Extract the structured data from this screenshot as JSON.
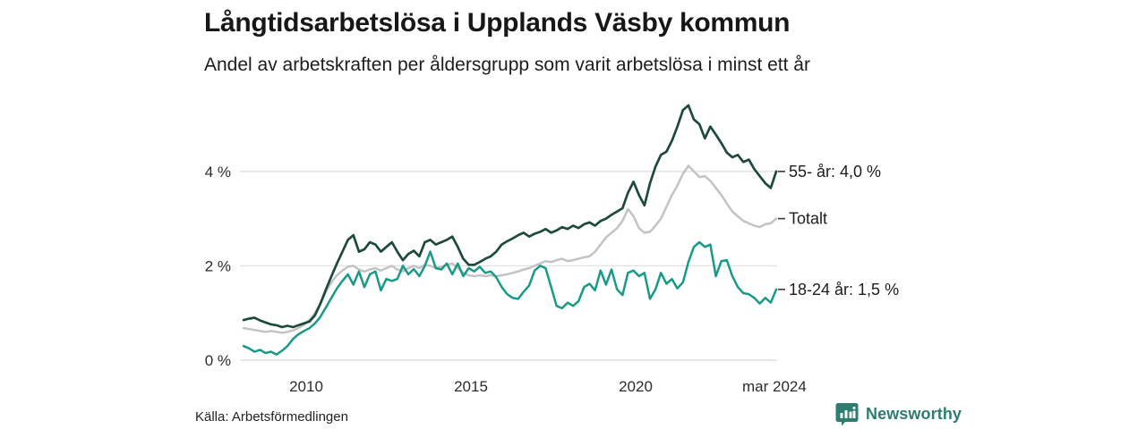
{
  "title": "Långtidsarbetslösa i Upplands Väsby kommun",
  "subtitle": "Andel av arbetskraften per åldersgrupp som varit arbetslösa i minst ett år",
  "source": "Källa: Arbetsförmedlingen",
  "brand": {
    "name": "Newsworthy",
    "color": "#2c7d6f",
    "icon": "bar-chart-speech-bubble-icon"
  },
  "colors": {
    "series_55": "#1e4a3e",
    "series_totalt": "#c3c3c5",
    "series_18_24": "#199a86",
    "gridline": "#e1e1e1",
    "zero_line": "#d6d6d6",
    "label_tick": "#3a3a3a",
    "axis_text": "#2b2b2b"
  },
  "chart_data": {
    "type": "line",
    "title": "Långtidsarbetslösa i Upplands Väsby kommun",
    "subtitle": "Andel av arbetskraften per åldersgrupp som varit arbetslösa i minst ett år",
    "unit": "% av arbetskraften",
    "x_start_year": 2008.1,
    "x_step_years": 0.16667,
    "x_range": [
      2008.1,
      2024.27
    ],
    "ylim": [
      0,
      5.6
    ],
    "grid": "horizontal",
    "legend_position": "right-end-labels",
    "y_ticks": [
      {
        "label": "0 %",
        "value": 0
      },
      {
        "label": "2 %",
        "value": 2
      },
      {
        "label": "4 %",
        "value": 4
      }
    ],
    "x_ticks": [
      {
        "label": "2010",
        "year": 2010
      },
      {
        "label": "2015",
        "year": 2015
      },
      {
        "label": "2020",
        "year": 2020
      },
      {
        "label": "mar 2024",
        "year": 2024.21
      }
    ],
    "series": [
      {
        "id": "totalt",
        "name": "Totalt",
        "end_label": "Totalt",
        "color": "#c3c3c5",
        "stroke_width": 2.5,
        "values": [
          0.68,
          0.66,
          0.64,
          0.62,
          0.6,
          0.62,
          0.6,
          0.58,
          0.6,
          0.63,
          0.68,
          0.75,
          0.85,
          1.0,
          1.2,
          1.45,
          1.65,
          1.8,
          1.9,
          1.98,
          2.0,
          1.92,
          1.88,
          1.92,
          1.95,
          1.9,
          1.95,
          2.0,
          1.92,
          1.88,
          1.95,
          2.0,
          1.95,
          2.02,
          2.0,
          1.95,
          1.98,
          2.02,
          2.05,
          1.95,
          1.85,
          1.8,
          1.78,
          1.8,
          1.78,
          1.8,
          1.78,
          1.8,
          1.82,
          1.85,
          1.88,
          1.92,
          1.95,
          2.0,
          2.05,
          2.1,
          2.08,
          2.12,
          2.15,
          2.1,
          2.12,
          2.15,
          2.18,
          2.2,
          2.3,
          2.45,
          2.6,
          2.7,
          2.8,
          2.95,
          3.2,
          3.05,
          2.8,
          2.7,
          2.72,
          2.85,
          3.0,
          3.25,
          3.5,
          3.7,
          3.95,
          4.12,
          4.0,
          3.88,
          3.9,
          3.8,
          3.65,
          3.5,
          3.32,
          3.15,
          3.05,
          2.95,
          2.9,
          2.85,
          2.82,
          2.88,
          2.9,
          3.0
        ]
      },
      {
        "id": "55-ar",
        "name": "55- år",
        "end_label": "55- år: 4,0 %",
        "end_value_label": "4,0 %",
        "color": "#1e4a3e",
        "stroke_width": 2.7,
        "values": [
          0.85,
          0.88,
          0.9,
          0.84,
          0.8,
          0.76,
          0.74,
          0.7,
          0.73,
          0.7,
          0.74,
          0.78,
          0.82,
          0.95,
          1.2,
          1.5,
          1.78,
          2.05,
          2.3,
          2.55,
          2.65,
          2.3,
          2.35,
          2.5,
          2.45,
          2.3,
          2.4,
          2.5,
          2.3,
          2.12,
          2.25,
          2.32,
          2.2,
          2.5,
          2.55,
          2.45,
          2.5,
          2.55,
          2.62,
          2.4,
          2.15,
          2.02,
          2.02,
          2.08,
          2.15,
          2.2,
          2.3,
          2.45,
          2.52,
          2.58,
          2.65,
          2.7,
          2.62,
          2.68,
          2.72,
          2.78,
          2.7,
          2.75,
          2.82,
          2.78,
          2.85,
          2.8,
          2.88,
          2.92,
          2.85,
          2.95,
          3.0,
          3.08,
          3.15,
          3.22,
          3.55,
          3.78,
          3.5,
          3.28,
          3.75,
          4.1,
          4.35,
          4.42,
          4.65,
          4.95,
          5.3,
          5.4,
          5.1,
          5.0,
          4.7,
          4.95,
          4.78,
          4.6,
          4.4,
          4.3,
          4.35,
          4.2,
          4.25,
          4.05,
          3.9,
          3.75,
          3.65,
          4.0
        ]
      },
      {
        "id": "18-24-ar",
        "name": "18-24 år",
        "end_label": "18-24 år: 1,5 %",
        "end_value_label": "1,5 %",
        "color": "#199a86",
        "stroke_width": 2.5,
        "values": [
          0.3,
          0.25,
          0.18,
          0.22,
          0.15,
          0.18,
          0.12,
          0.2,
          0.3,
          0.45,
          0.55,
          0.62,
          0.68,
          0.78,
          0.92,
          1.12,
          1.32,
          1.52,
          1.68,
          1.82,
          1.6,
          1.88,
          1.55,
          1.82,
          1.88,
          1.48,
          1.72,
          1.68,
          1.72,
          2.0,
          1.82,
          1.93,
          1.78,
          2.0,
          2.3,
          1.95,
          1.92,
          2.05,
          1.82,
          2.05,
          1.78,
          1.95,
          1.88,
          1.98,
          1.85,
          1.88,
          1.76,
          1.55,
          1.4,
          1.32,
          1.3,
          1.45,
          1.58,
          1.9,
          2.0,
          1.95,
          1.55,
          1.15,
          1.1,
          1.22,
          1.15,
          1.25,
          1.55,
          1.62,
          1.48,
          1.9,
          1.6,
          1.92,
          1.5,
          1.38,
          1.85,
          1.9,
          1.78,
          1.85,
          1.3,
          1.5,
          1.85,
          1.62,
          1.72,
          1.52,
          1.65,
          2.08,
          2.4,
          2.5,
          2.4,
          2.45,
          1.78,
          2.1,
          2.12,
          1.78,
          1.55,
          1.42,
          1.4,
          1.32,
          1.2,
          1.32,
          1.22,
          1.5
        ]
      }
    ]
  }
}
